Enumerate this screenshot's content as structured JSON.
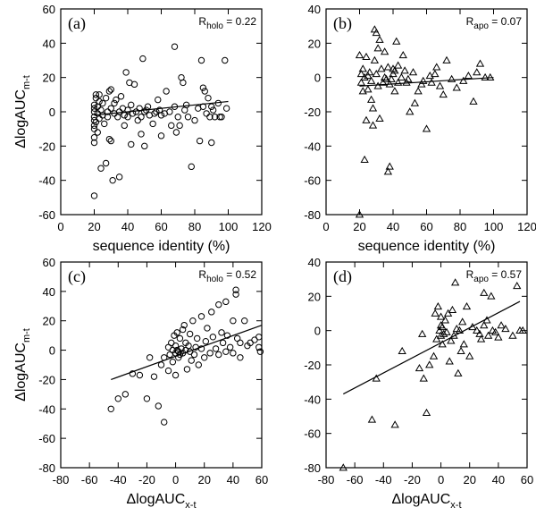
{
  "chart_data": [
    {
      "type": "scatter",
      "panel": "(a)",
      "r_label": {
        "main": "R",
        "sub": "holo",
        "value": " = 0.22"
      },
      "xlabel": "sequence identity (%)",
      "ylabel": {
        "main": "ΔlogAUC",
        "sub": "m-t"
      },
      "xlim": [
        0,
        120
      ],
      "ylim": [
        -60,
        60
      ],
      "xticks": [
        0,
        20,
        40,
        60,
        80,
        100,
        120
      ],
      "yticks": [
        -60,
        -40,
        -20,
        0,
        20,
        40,
        60
      ],
      "marker": "circle",
      "fit": [
        [
          20,
          -2
        ],
        [
          100,
          6
        ]
      ],
      "points": [
        [
          20,
          -49
        ],
        [
          20,
          -18
        ],
        [
          20,
          -15
        ],
        [
          20,
          -10
        ],
        [
          20,
          -8
        ],
        [
          20,
          -5
        ],
        [
          20,
          -3
        ],
        [
          20,
          0
        ],
        [
          20,
          2
        ],
        [
          20,
          4
        ],
        [
          21,
          8
        ],
        [
          21,
          -6
        ],
        [
          21,
          10
        ],
        [
          22,
          -1
        ],
        [
          22,
          3
        ],
        [
          22,
          -12
        ],
        [
          23,
          6
        ],
        [
          23,
          -4
        ],
        [
          23,
          10
        ],
        [
          24,
          1
        ],
        [
          24,
          -33
        ],
        [
          25,
          -2
        ],
        [
          25,
          5
        ],
        [
          26,
          -7
        ],
        [
          27,
          -30
        ],
        [
          27,
          8
        ],
        [
          28,
          0
        ],
        [
          28,
          -3
        ],
        [
          29,
          12
        ],
        [
          29,
          -16
        ],
        [
          30,
          2
        ],
        [
          30,
          -17
        ],
        [
          30,
          13
        ],
        [
          31,
          -40
        ],
        [
          32,
          -1
        ],
        [
          32,
          5
        ],
        [
          33,
          7
        ],
        [
          34,
          -3
        ],
        [
          35,
          -38
        ],
        [
          35,
          0
        ],
        [
          36,
          9
        ],
        [
          37,
          2
        ],
        [
          38,
          -2
        ],
        [
          38,
          -8
        ],
        [
          39,
          23
        ],
        [
          40,
          1
        ],
        [
          40,
          -3
        ],
        [
          41,
          17
        ],
        [
          42,
          4
        ],
        [
          42,
          -19
        ],
        [
          43,
          -1
        ],
        [
          44,
          16
        ],
        [
          45,
          0
        ],
        [
          46,
          -5
        ],
        [
          47,
          2
        ],
        [
          48,
          -13
        ],
        [
          48,
          -3
        ],
        [
          49,
          31
        ],
        [
          50,
          0
        ],
        [
          50,
          -20
        ],
        [
          51,
          1
        ],
        [
          52,
          3
        ],
        [
          53,
          -2
        ],
        [
          55,
          -7
        ],
        [
          56,
          -1
        ],
        [
          57,
          0
        ],
        [
          58,
          7
        ],
        [
          59,
          1
        ],
        [
          60,
          -2
        ],
        [
          60,
          -14
        ],
        [
          62,
          -1
        ],
        [
          63,
          12
        ],
        [
          65,
          0
        ],
        [
          66,
          -8
        ],
        [
          68,
          38
        ],
        [
          68,
          3
        ],
        [
          69,
          -12
        ],
        [
          70,
          -3
        ],
        [
          71,
          -8
        ],
        [
          72,
          20
        ],
        [
          73,
          17
        ],
        [
          74,
          1
        ],
        [
          75,
          4
        ],
        [
          76,
          -3
        ],
        [
          78,
          -32
        ],
        [
          80,
          -5
        ],
        [
          82,
          2
        ],
        [
          83,
          -17
        ],
        [
          84,
          30
        ],
        [
          85,
          14
        ],
        [
          85,
          3
        ],
        [
          86,
          12
        ],
        [
          87,
          -1
        ],
        [
          88,
          8
        ],
        [
          89,
          -3
        ],
        [
          90,
          3
        ],
        [
          90,
          -18
        ],
        [
          91,
          1
        ],
        [
          92,
          -3
        ],
        [
          94,
          5
        ],
        [
          95,
          -3
        ],
        [
          96,
          -3
        ],
        [
          98,
          30
        ],
        [
          99,
          2
        ]
      ]
    },
    {
      "type": "scatter",
      "panel": "(b)",
      "r_label": {
        "main": "R",
        "sub": "apo",
        "value": " = 0.07"
      },
      "xlabel": "sequence identity (%)",
      "ylabel": {
        "main": "",
        "sub": ""
      },
      "xlim": [
        0,
        120
      ],
      "ylim": [
        -80,
        40
      ],
      "xticks": [
        0,
        20,
        40,
        60,
        80,
        100,
        120
      ],
      "yticks": [
        -80,
        -60,
        -40,
        -20,
        0,
        20,
        40
      ],
      "marker": "triangle",
      "fit": [
        [
          20,
          -5
        ],
        [
          100,
          0
        ]
      ],
      "points": [
        [
          20,
          -80
        ],
        [
          20,
          13
        ],
        [
          21,
          2
        ],
        [
          21,
          -3
        ],
        [
          22,
          5
        ],
        [
          22,
          -8
        ],
        [
          23,
          0
        ],
        [
          23,
          -48
        ],
        [
          24,
          -25
        ],
        [
          24,
          12
        ],
        [
          25,
          1
        ],
        [
          25,
          -7
        ],
        [
          26,
          3
        ],
        [
          27,
          -2
        ],
        [
          27,
          -13
        ],
        [
          28,
          -18
        ],
        [
          28,
          -28
        ],
        [
          29,
          10
        ],
        [
          29,
          28
        ],
        [
          30,
          26
        ],
        [
          30,
          2
        ],
        [
          31,
          -5
        ],
        [
          31,
          17
        ],
        [
          32,
          22
        ],
        [
          32,
          -24
        ],
        [
          33,
          5
        ],
        [
          34,
          -3
        ],
        [
          35,
          15
        ],
        [
          35,
          0
        ],
        [
          36,
          -1
        ],
        [
          37,
          6
        ],
        [
          37,
          -55
        ],
        [
          38,
          -52
        ],
        [
          38,
          -4
        ],
        [
          39,
          -1
        ],
        [
          40,
          5
        ],
        [
          40,
          2
        ],
        [
          41,
          -8
        ],
        [
          41,
          4
        ],
        [
          42,
          21
        ],
        [
          43,
          7
        ],
        [
          43,
          -3
        ],
        [
          45,
          0
        ],
        [
          46,
          13
        ],
        [
          47,
          4
        ],
        [
          48,
          -3
        ],
        [
          49,
          -1
        ],
        [
          50,
          -20
        ],
        [
          52,
          3
        ],
        [
          53,
          -15
        ],
        [
          55,
          -8
        ],
        [
          57,
          -4
        ],
        [
          58,
          -2
        ],
        [
          60,
          -30
        ],
        [
          62,
          1
        ],
        [
          63,
          -3
        ],
        [
          65,
          2
        ],
        [
          66,
          6
        ],
        [
          68,
          -5
        ],
        [
          70,
          -10
        ],
        [
          72,
          10
        ],
        [
          75,
          -1
        ],
        [
          78,
          -6
        ],
        [
          82,
          -2
        ],
        [
          85,
          1
        ],
        [
          88,
          -14
        ],
        [
          90,
          3
        ],
        [
          92,
          8
        ],
        [
          95,
          0
        ],
        [
          98,
          0
        ]
      ]
    },
    {
      "type": "scatter",
      "panel": "(c)",
      "r_label": {
        "main": "R",
        "sub": "holo",
        "value": " = 0.52"
      },
      "xlabel": {
        "main": "ΔlogAUC",
        "sub": "x-t"
      },
      "ylabel": {
        "main": "ΔlogAUC",
        "sub": "m-t"
      },
      "xlim": [
        -80,
        60
      ],
      "ylim": [
        -80,
        60
      ],
      "xticks": [
        -80,
        -60,
        -40,
        -20,
        0,
        20,
        40,
        60
      ],
      "yticks": [
        -80,
        -60,
        -40,
        -20,
        0,
        20,
        40,
        60
      ],
      "marker": "circle",
      "fit": [
        [
          -45,
          -20
        ],
        [
          60,
          17
        ]
      ],
      "points": [
        [
          -45,
          -40
        ],
        [
          -40,
          -33
        ],
        [
          -35,
          -30
        ],
        [
          -30,
          -16
        ],
        [
          -25,
          -17
        ],
        [
          -20,
          -33
        ],
        [
          -18,
          -5
        ],
        [
          -15,
          -18
        ],
        [
          -12,
          -38
        ],
        [
          -10,
          -10
        ],
        [
          -8,
          -49
        ],
        [
          -8,
          -5
        ],
        [
          -5,
          2
        ],
        [
          -5,
          -14
        ],
        [
          -4,
          -3
        ],
        [
          -3,
          5
        ],
        [
          -2,
          0
        ],
        [
          -2,
          -8
        ],
        [
          -1,
          10
        ],
        [
          0,
          -2
        ],
        [
          0,
          3
        ],
        [
          0,
          -17
        ],
        [
          1,
          0
        ],
        [
          1,
          12
        ],
        [
          2,
          -1
        ],
        [
          2,
          -5
        ],
        [
          3,
          8
        ],
        [
          3,
          -3
        ],
        [
          4,
          1
        ],
        [
          5,
          14
        ],
        [
          5,
          -2
        ],
        [
          6,
          17
        ],
        [
          7,
          0
        ],
        [
          7,
          5
        ],
        [
          8,
          -13
        ],
        [
          9,
          3
        ],
        [
          10,
          -1
        ],
        [
          10,
          11
        ],
        [
          11,
          -7
        ],
        [
          12,
          20
        ],
        [
          13,
          -3
        ],
        [
          14,
          2
        ],
        [
          15,
          8
        ],
        [
          16,
          -10
        ],
        [
          18,
          23
        ],
        [
          18,
          1
        ],
        [
          20,
          -5
        ],
        [
          21,
          6
        ],
        [
          22,
          15
        ],
        [
          24,
          -2
        ],
        [
          25,
          26
        ],
        [
          26,
          9
        ],
        [
          28,
          1
        ],
        [
          30,
          31
        ],
        [
          30,
          -3
        ],
        [
          32,
          12
        ],
        [
          33,
          5
        ],
        [
          35,
          33
        ],
        [
          35,
          -1
        ],
        [
          36,
          10
        ],
        [
          38,
          2
        ],
        [
          40,
          -2
        ],
        [
          40,
          20
        ],
        [
          42,
          38
        ],
        [
          42,
          41
        ],
        [
          43,
          8
        ],
        [
          45,
          5
        ],
        [
          45,
          -5
        ],
        [
          48,
          20
        ],
        [
          50,
          3
        ],
        [
          52,
          5
        ],
        [
          55,
          7
        ],
        [
          58,
          9
        ],
        [
          58,
          2
        ],
        [
          59,
          -1
        ]
      ]
    },
    {
      "type": "scatter",
      "panel": "(d)",
      "r_label": {
        "main": "R",
        "sub": "apo",
        "value": " = 0.57"
      },
      "xlabel": {
        "main": "ΔlogAUC",
        "sub": "x-t"
      },
      "ylabel": {
        "main": "",
        "sub": ""
      },
      "xlim": [
        -80,
        60
      ],
      "ylim": [
        -80,
        40
      ],
      "xticks": [
        -80,
        -60,
        -40,
        -20,
        0,
        20,
        40,
        60
      ],
      "yticks": [
        -80,
        -60,
        -40,
        -20,
        0,
        20,
        40
      ],
      "marker": "triangle",
      "fit": [
        [
          -68,
          -37
        ],
        [
          55,
          17
        ]
      ],
      "points": [
        [
          -68,
          -80
        ],
        [
          -48,
          -52
        ],
        [
          -45,
          -28
        ],
        [
          -32,
          -55
        ],
        [
          -27,
          -12
        ],
        [
          -15,
          -22
        ],
        [
          -13,
          -2
        ],
        [
          -12,
          -28
        ],
        [
          -10,
          -48
        ],
        [
          -8,
          -20
        ],
        [
          -5,
          -15
        ],
        [
          -4,
          10
        ],
        [
          -3,
          -5
        ],
        [
          -2,
          14
        ],
        [
          -1,
          0
        ],
        [
          0,
          3
        ],
        [
          0,
          -3
        ],
        [
          0,
          8
        ],
        [
          1,
          -8
        ],
        [
          1,
          2
        ],
        [
          2,
          -2
        ],
        [
          3,
          6
        ],
        [
          4,
          -1
        ],
        [
          5,
          10
        ],
        [
          6,
          -18
        ],
        [
          7,
          -6
        ],
        [
          8,
          12
        ],
        [
          9,
          -3
        ],
        [
          10,
          28
        ],
        [
          11,
          1
        ],
        [
          12,
          -25
        ],
        [
          13,
          0
        ],
        [
          14,
          -12
        ],
        [
          15,
          5
        ],
        [
          16,
          -8
        ],
        [
          18,
          14
        ],
        [
          20,
          -15
        ],
        [
          22,
          2
        ],
        [
          25,
          0
        ],
        [
          27,
          -2
        ],
        [
          28,
          -5
        ],
        [
          30,
          22
        ],
        [
          30,
          3
        ],
        [
          32,
          6
        ],
        [
          33,
          -3
        ],
        [
          35,
          20
        ],
        [
          36,
          0
        ],
        [
          38,
          -1
        ],
        [
          40,
          -4
        ],
        [
          42,
          3
        ],
        [
          45,
          1
        ],
        [
          50,
          -3
        ],
        [
          53,
          26
        ],
        [
          55,
          0
        ],
        [
          57,
          0
        ]
      ]
    }
  ]
}
